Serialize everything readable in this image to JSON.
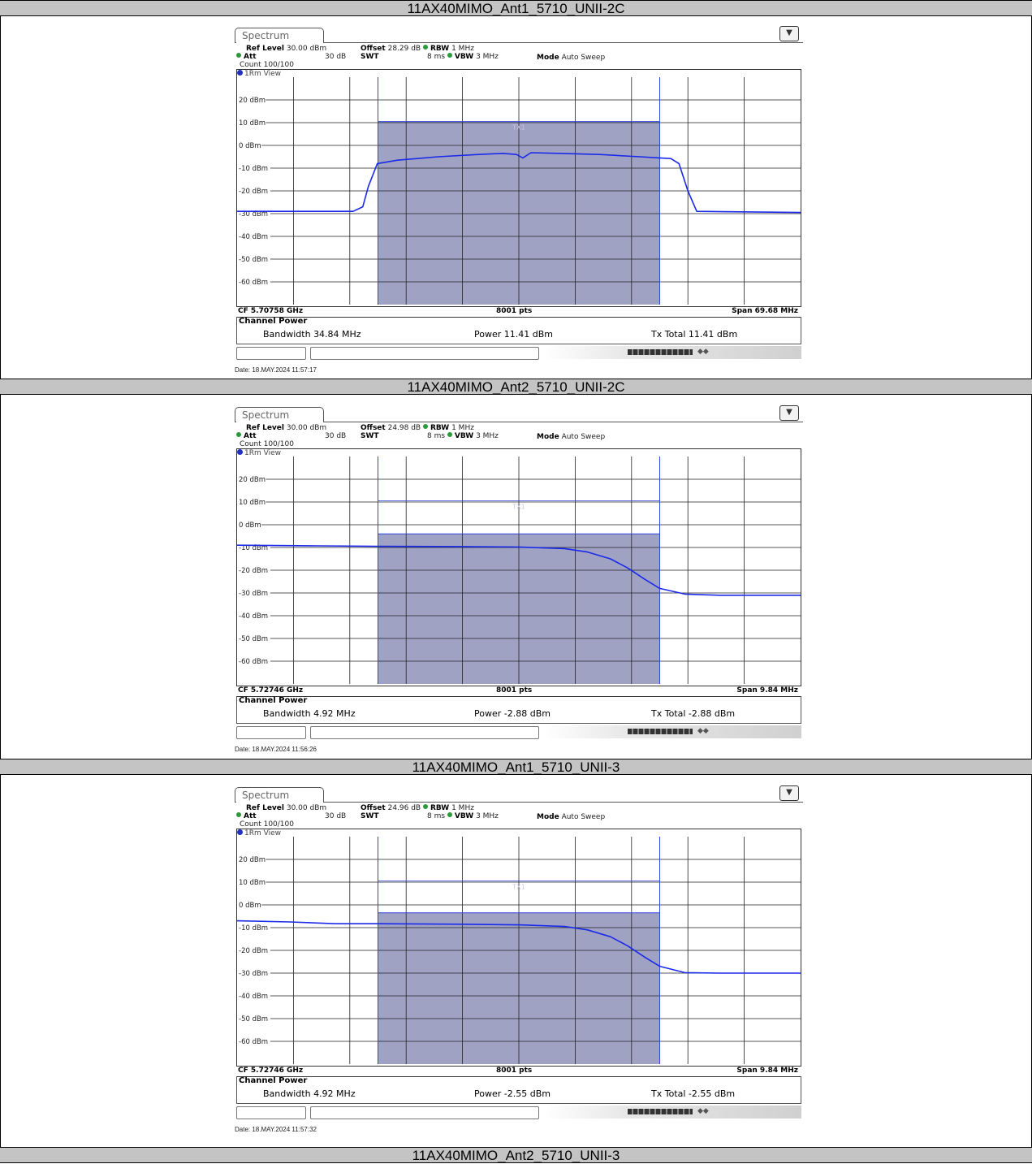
{
  "headers": [
    "11AX40MIMO_Ant1_5710_UNII-2C",
    "11AX40MIMO_Ant2_5710_UNII-2C",
    "11AX40MIMO_Ant1_5710_UNII-3",
    "11AX40MIMO_Ant2_5710_UNII-3"
  ],
  "colors": {
    "trace": "#1a2ae8",
    "channel_fill": "#a0a2c4",
    "channel_line": "#3344dd",
    "grid": "#222222",
    "header_bg": "#c4c4c4"
  },
  "icons": {
    "tab_menu": "dropdown-icon"
  },
  "panels": [
    {
      "tab": "Spectrum",
      "ref_level_label": "Ref Level",
      "ref_level": "30.00 dBm",
      "att_label": "Att",
      "att": "30 dB",
      "offset_label": "Offset",
      "offset": "28.29 dB",
      "swt_label": "SWT",
      "swt": "8 ms",
      "rbw_label": "RBW",
      "rbw": "1 MHz",
      "vbw_label": "VBW",
      "vbw": "3 MHz",
      "mode_label": "Mode",
      "mode": "Auto Sweep",
      "count": "Count 100/100",
      "view": "1Rm View",
      "cf": "CF 5.70758 GHz",
      "pts": "8001 pts",
      "span": "Span 69.68 MHz",
      "cp_title": "Channel Power",
      "bandwidth_label": "Bandwidth",
      "bandwidth": "34.84 MHz",
      "power_label": "Power",
      "power": "11.41 dBm",
      "txtotal_label": "Tx Total",
      "txtotal": "11.41 dBm",
      "date": "Date: 18.MAY.2024  11:57:17",
      "tx_label": "TX1"
    },
    {
      "tab": "Spectrum",
      "ref_level_label": "Ref Level",
      "ref_level": "30.00 dBm",
      "att_label": "Att",
      "att": "30 dB",
      "offset_label": "Offset",
      "offset": "24.98 dB",
      "swt_label": "SWT",
      "swt": "8 ms",
      "rbw_label": "RBW",
      "rbw": "1 MHz",
      "vbw_label": "VBW",
      "vbw": "3 MHz",
      "mode_label": "Mode",
      "mode": "Auto Sweep",
      "count": "Count 100/100",
      "view": "1Rm View",
      "cf": "CF 5.72746 GHz",
      "pts": "8001 pts",
      "span": "Span 9.84 MHz",
      "cp_title": "Channel Power",
      "bandwidth_label": "Bandwidth",
      "bandwidth": "4.92 MHz",
      "power_label": "Power",
      "power": "-2.88 dBm",
      "txtotal_label": "Tx Total",
      "txtotal": "-2.88 dBm",
      "date": "Date: 18.MAY.2024  11:56:26",
      "tx_label": "TX1"
    },
    {
      "tab": "Spectrum",
      "ref_level_label": "Ref Level",
      "ref_level": "30.00 dBm",
      "att_label": "Att",
      "att": "30 dB",
      "offset_label": "Offset",
      "offset": "24.96 dB",
      "swt_label": "SWT",
      "swt": "8 ms",
      "rbw_label": "RBW",
      "rbw": "1 MHz",
      "vbw_label": "VBW",
      "vbw": "3 MHz",
      "mode_label": "Mode",
      "mode": "Auto Sweep",
      "count": "Count 100/100",
      "view": "1Rm View",
      "cf": "CF 5.72746 GHz",
      "pts": "8001 pts",
      "span": "Span 9.84 MHz",
      "cp_title": "Channel Power",
      "bandwidth_label": "Bandwidth",
      "bandwidth": "4.92 MHz",
      "power_label": "Power",
      "power": "-2.55 dBm",
      "txtotal_label": "Tx Total",
      "txtotal": "-2.55 dBm",
      "date": "Date: 18.MAY.2024  11:57:32",
      "tx_label": "TX1"
    }
  ],
  "chart_data": [
    {
      "type": "line",
      "y_tick_labels": [
        "20 dBm",
        "10 dBm",
        "0 dBm",
        "-10 dBm",
        "-20 dBm",
        "-30 dBm",
        "-40 dBm",
        "-50 dBm",
        "-60 dBm"
      ],
      "ylim": [
        -70,
        30
      ],
      "xlim_mhz": [
        -34.84,
        34.84
      ],
      "grid": true,
      "channel_band_mhz": [
        -17.42,
        17.42
      ],
      "channel_level_dbm": 10.5,
      "series": [
        {
          "x_mhz": [
            -34.84,
            -20.5,
            -19.3,
            -18.6,
            -17.5,
            -15,
            -10,
            -5,
            -2,
            -0.3,
            0.5,
            1.5,
            5,
            10,
            15,
            17.4,
            18.8,
            19.8,
            20.9,
            22,
            34.84
          ],
          "y_dbm": [
            -29,
            -29,
            -27,
            -18,
            -8,
            -6.5,
            -5,
            -4,
            -3.5,
            -4,
            -5.5,
            -3.2,
            -3.5,
            -4,
            -5,
            -5.5,
            -5.8,
            -8,
            -20,
            -29,
            -29.5
          ]
        }
      ]
    },
    {
      "type": "line",
      "y_tick_labels": [
        "20 dBm",
        "10 dBm",
        "0 dBm",
        "-10 dBm",
        "-20 dBm",
        "-30 dBm",
        "-40 dBm",
        "-50 dBm",
        "-60 dBm"
      ],
      "ylim": [
        -70,
        30
      ],
      "xlim_mhz": [
        -4.92,
        4.92
      ],
      "grid": true,
      "channel_band_mhz": [
        -2.46,
        2.46
      ],
      "channel_level_dbm": -4,
      "tx_marker_level_dbm": 10.5,
      "series": [
        {
          "x_mhz": [
            -4.92,
            -3.5,
            -2.46,
            -1.0,
            0.0,
            0.8,
            1.2,
            1.6,
            1.9,
            2.2,
            2.46,
            2.9,
            3.5,
            4.92
          ],
          "y_dbm": [
            -9,
            -9.3,
            -9.5,
            -9.6,
            -9.8,
            -10.5,
            -12,
            -15,
            -19,
            -24,
            -28,
            -30.5,
            -31,
            -31
          ]
        }
      ]
    },
    {
      "type": "line",
      "y_tick_labels": [
        "20 dBm",
        "10 dBm",
        "0 dBm",
        "-10 dBm",
        "-20 dBm",
        "-30 dBm",
        "-40 dBm",
        "-50 dBm",
        "-60 dBm"
      ],
      "ylim": [
        -70,
        30
      ],
      "xlim_mhz": [
        -4.92,
        4.92
      ],
      "grid": true,
      "channel_band_mhz": [
        -2.46,
        2.46
      ],
      "channel_level_dbm": -3.5,
      "tx_marker_level_dbm": 10.5,
      "series": [
        {
          "x_mhz": [
            -4.92,
            -4.0,
            -3.2,
            -2.46,
            -1.0,
            0.0,
            0.8,
            1.2,
            1.6,
            1.9,
            2.2,
            2.46,
            2.9,
            3.5,
            4.92
          ],
          "y_dbm": [
            -7,
            -7.5,
            -8.3,
            -8.3,
            -8.5,
            -8.8,
            -9.5,
            -11,
            -14,
            -18,
            -23,
            -27,
            -29.8,
            -30,
            -30
          ]
        }
      ]
    }
  ]
}
